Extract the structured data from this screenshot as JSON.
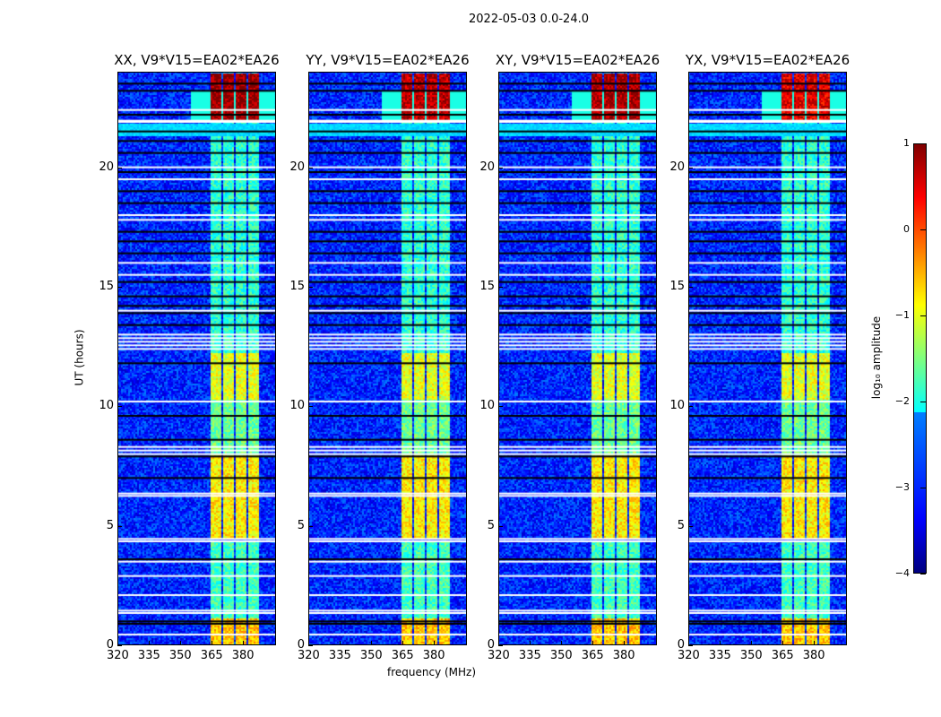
{
  "chart_data": {
    "type": "heatmap",
    "title": "2022-05-03 0.0-24.0",
    "xlabel": "frequency (MHz)",
    "ylabel": "UT (hours)",
    "xlim": [
      320,
      396
    ],
    "ylim": [
      0,
      24
    ],
    "xticks": [
      320,
      335,
      350,
      365,
      380
    ],
    "yticks": [
      0,
      5,
      10,
      15,
      20
    ],
    "panels": [
      {
        "title": "XX, V9*V15=EA02*EA26",
        "late_boost": 0.6
      },
      {
        "title": "YY, V9*V15=EA02*EA26",
        "late_boost": 0.4
      },
      {
        "title": "XY, V9*V15=EA02*EA26",
        "late_boost": 0.5
      },
      {
        "title": "YX, V9*V15=EA02*EA26",
        "late_boost": 0.2
      }
    ],
    "colorbar": {
      "label": "log₁₀ amplitude",
      "range": [
        -4,
        1
      ],
      "ticks": [
        1,
        0,
        -1,
        -2,
        -3,
        -4
      ],
      "colormap": "jet"
    },
    "background_log_amp": -3.2,
    "bright_subbands_mhz": [
      [
        364,
        369.5
      ],
      [
        370.5,
        375.5
      ],
      [
        376.5,
        381.5
      ],
      [
        382.5,
        387.5
      ]
    ],
    "band_levels": [
      {
        "hours": [
          0,
          1.2
        ],
        "log_amp": -0.6
      },
      {
        "hours": [
          1.2,
          4.4
        ],
        "log_amp": -1.8
      },
      {
        "hours": [
          4.5,
          8.0
        ],
        "log_amp": -0.8
      },
      {
        "hours": [
          8.0,
          10.3
        ],
        "log_amp": -1.6
      },
      {
        "hours": [
          10.3,
          12.3
        ],
        "log_amp": -1.0
      },
      {
        "hours": [
          12.3,
          22.0
        ],
        "log_amp": -1.9
      },
      {
        "hours": [
          22.0,
          24.0
        ],
        "log_amp": 0.3
      }
    ],
    "flagged_white_hours": [
      0.45,
      1.35,
      1.45,
      2.1,
      2.9,
      3.5,
      4.35,
      4.45,
      6.25,
      6.35,
      8.0,
      8.15,
      8.3,
      10.2,
      12.4,
      12.55,
      12.7,
      12.85,
      13.0,
      14.0,
      15.5,
      16.0,
      17.8,
      18.0,
      19.5,
      20.0,
      21.9,
      21.95,
      22.4
    ],
    "flagged_black_hours": [
      0.9,
      1.0,
      3.6,
      7.0,
      7.9,
      8.6,
      9.6,
      11.8,
      13.4,
      13.9,
      14.2,
      14.6,
      15.2,
      16.4,
      16.9,
      17.3,
      18.5,
      19.0,
      19.8,
      20.6,
      21.1,
      21.5,
      22.2,
      23.2,
      23.5
    ]
  }
}
